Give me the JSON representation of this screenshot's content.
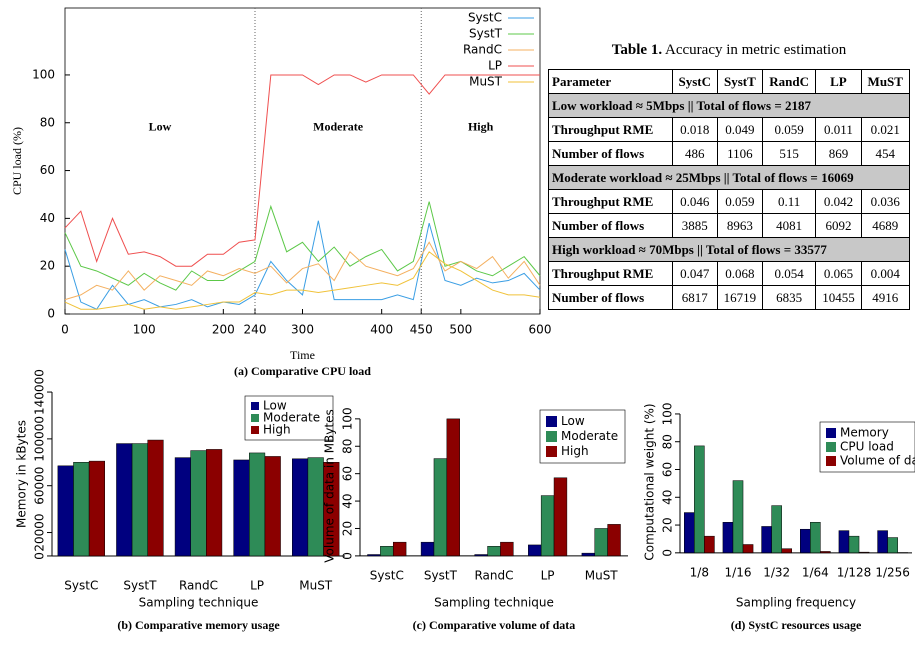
{
  "chart_data": [
    {
      "type": "line",
      "title": "(a) Comparative CPU load",
      "xlabel": "Time",
      "ylabel": "CPU load (%)",
      "x": [
        0,
        20,
        40,
        60,
        80,
        100,
        120,
        140,
        160,
        180,
        200,
        220,
        240,
        260,
        280,
        300,
        320,
        340,
        360,
        380,
        400,
        420,
        440,
        460,
        480,
        500,
        520,
        540,
        560,
        580,
        600
      ],
      "series": [
        {
          "name": "SystC",
          "color": "#3a9ee4",
          "values": [
            27,
            5,
            2,
            12,
            4,
            6,
            3,
            4,
            6,
            3,
            5,
            4,
            8,
            22,
            14,
            8,
            39,
            6,
            6,
            6,
            6,
            8,
            6,
            38,
            14,
            12,
            15,
            13,
            14,
            17,
            10
          ]
        },
        {
          "name": "SystT",
          "color": "#5cc848",
          "values": [
            34,
            20,
            18,
            15,
            12,
            17,
            13,
            10,
            18,
            14,
            14,
            18,
            22,
            45,
            26,
            30,
            22,
            28,
            20,
            24,
            27,
            18,
            22,
            47,
            20,
            22,
            18,
            16,
            20,
            24,
            16
          ]
        },
        {
          "name": "RandC",
          "color": "#f4b060",
          "values": [
            6,
            8,
            12,
            10,
            18,
            10,
            16,
            14,
            12,
            18,
            16,
            19,
            17,
            20,
            13,
            19,
            21,
            14,
            26,
            20,
            18,
            16,
            19,
            30,
            18,
            22,
            19,
            24,
            15,
            22,
            12
          ]
        },
        {
          "name": "LP",
          "color": "#ef4f4f",
          "values": [
            36,
            43,
            22,
            40,
            25,
            26,
            24,
            20,
            20,
            25,
            25,
            30,
            31,
            100,
            100,
            100,
            96,
            100,
            100,
            97,
            100,
            100,
            100,
            92,
            100,
            100,
            100,
            100,
            100,
            100,
            100
          ]
        },
        {
          "name": "MuST",
          "color": "#f0c23a",
          "values": [
            5,
            2,
            2,
            3,
            4,
            2,
            3,
            2,
            3,
            4,
            5,
            5,
            9,
            8,
            10,
            10,
            9,
            10,
            11,
            12,
            13,
            12,
            15,
            26,
            21,
            18,
            14,
            10,
            8,
            8,
            7
          ]
        }
      ],
      "xlim": [
        0,
        600
      ],
      "xticks": [
        0,
        100,
        200,
        240,
        300,
        400,
        450,
        500,
        600
      ],
      "ylim": [
        0,
        128
      ],
      "yticks": [
        0,
        20,
        40,
        60,
        80,
        100
      ],
      "region_boundaries": [
        240,
        450
      ],
      "annotations": [
        "Low",
        "Moderate",
        "High"
      ],
      "legend": "top-right"
    },
    {
      "type": "bar",
      "title": "(b) Comparative memory usage",
      "xlabel": "Sampling technique",
      "ylabel": "Memory in kBytes",
      "categories": [
        "SystC",
        "SystT",
        "RandC",
        "LP",
        "MuST"
      ],
      "series": [
        {
          "name": "Low",
          "color": "#00007f",
          "values": [
            77000,
            96000,
            84000,
            82000,
            83000
          ]
        },
        {
          "name": "Moderate",
          "color": "#2e8b57",
          "values": [
            80000,
            96000,
            90000,
            88000,
            84000
          ]
        },
        {
          "name": "High",
          "color": "#8b0000",
          "values": [
            81000,
            99000,
            91000,
            85000,
            80000
          ]
        }
      ],
      "ylim": [
        -12000,
        152000
      ],
      "yticks": [
        0,
        20000,
        60000,
        100000,
        140000
      ],
      "legend": "top-right"
    },
    {
      "type": "bar",
      "title": "(c) Comparative volume of data",
      "xlabel": "Sampling technique",
      "ylabel": "Volume of data in MBytes",
      "categories": [
        "SystC",
        "SystT",
        "RandC",
        "LP",
        "MuST"
      ],
      "series": [
        {
          "name": "Low",
          "color": "#00007f",
          "values": [
            1,
            10,
            1,
            8,
            2
          ]
        },
        {
          "name": "Moderate",
          "color": "#2e8b57",
          "values": [
            7,
            71,
            7,
            44,
            20
          ]
        },
        {
          "name": "High",
          "color": "#8b0000",
          "values": [
            10,
            100,
            10,
            57,
            23
          ]
        }
      ],
      "ylim": [
        -3,
        105
      ],
      "yticks": [
        0,
        20,
        40,
        60,
        80,
        100
      ],
      "legend": "top-right"
    },
    {
      "type": "bar",
      "title": "(d) SystC resources usage",
      "xlabel": "Sampling frequency",
      "ylabel": "Computational weight (%)",
      "categories": [
        "1/8",
        "1/16",
        "1/32",
        "1/64",
        "1/128",
        "1/256"
      ],
      "series": [
        {
          "name": "Memory",
          "color": "#00007f",
          "values": [
            29,
            22,
            19,
            17,
            16,
            16
          ]
        },
        {
          "name": "CPU load",
          "color": "#2e8b57",
          "values": [
            77,
            52,
            34,
            22,
            12,
            11
          ]
        },
        {
          "name": "Volume of data",
          "color": "#8b0000",
          "values": [
            12,
            6,
            3,
            1,
            0.5,
            0.2
          ]
        }
      ],
      "ylim": [
        -3,
        105
      ],
      "yticks": [
        0,
        20,
        40,
        60,
        80,
        100
      ],
      "legend": "top-right"
    }
  ],
  "table": {
    "label": "Table 1.",
    "title": "Accuracy in metric estimation",
    "header": [
      "Parameter",
      "SystC",
      "SystT",
      "RandC",
      "LP",
      "MuST"
    ],
    "sections": [
      {
        "title": "Low workload ≈ 5Mbps || Total of flows = 2187",
        "rows": [
          [
            "Throughput RME",
            "0.018",
            "0.049",
            "0.059",
            "0.011",
            "0.021"
          ],
          [
            "Number of flows",
            "486",
            "1106",
            "515",
            "869",
            "454"
          ]
        ]
      },
      {
        "title": "Moderate workload ≈ 25Mbps || Total of flows = 16069",
        "rows": [
          [
            "Throughput RME",
            "0.046",
            "0.059",
            "0.11",
            "0.042",
            "0.036"
          ],
          [
            "Number of flows",
            "3885",
            "8963",
            "4081",
            "6092",
            "4689"
          ]
        ]
      },
      {
        "title": "High workload ≈ 70Mbps || Total of flows = 33577",
        "rows": [
          [
            "Throughput RME",
            "0.047",
            "0.068",
            "0.054",
            "0.065",
            "0.004"
          ],
          [
            "Number of flows",
            "6817",
            "16719",
            "6835",
            "10455",
            "4916"
          ]
        ]
      }
    ]
  }
}
